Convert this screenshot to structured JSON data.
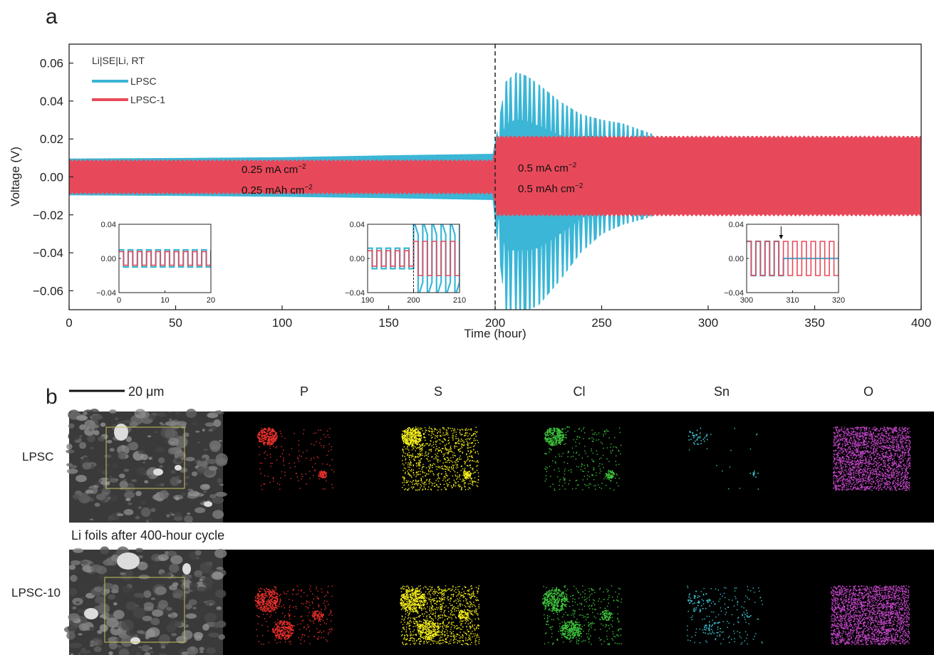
{
  "figure": {
    "panel_a": "a",
    "panel_b": "b"
  },
  "chart_data": {
    "type": "line",
    "xlabel": "Time (hour)",
    "ylabel": "Voltage (V)",
    "xlim": [
      0,
      400
    ],
    "ylim": [
      -0.07,
      0.07
    ],
    "xticks": [
      "0",
      "50",
      "100",
      "150",
      "200",
      "250",
      "300",
      "350",
      "400"
    ],
    "yticks": [
      "0.06",
      "0.04",
      "0.02",
      "0.00",
      "−0.02",
      "−0.04",
      "−0.06"
    ],
    "yticks_values": [
      0.06,
      0.04,
      0.02,
      0.0,
      -0.02,
      -0.04,
      -0.06
    ],
    "legend_title": "Li|SE|Li, RT",
    "legend_position": "top-left",
    "series": [
      {
        "name": "LPSC",
        "color": "#3bb6d6",
        "envelope": {
          "t": [
            0,
            50,
            100,
            150,
            199,
            201,
            205,
            210,
            215,
            220,
            230,
            240,
            250,
            260,
            270,
            275
          ],
          "upper": [
            0.0095,
            0.0098,
            0.0102,
            0.0112,
            0.012,
            0.024,
            0.05,
            0.055,
            0.053,
            0.049,
            0.04,
            0.033,
            0.03,
            0.028,
            0.024,
            0.022
          ],
          "lower": [
            -0.0095,
            -0.0098,
            -0.0103,
            -0.011,
            -0.012,
            -0.033,
            -0.07,
            -0.07,
            -0.07,
            -0.068,
            -0.055,
            -0.04,
            -0.03,
            -0.025,
            -0.022,
            -0.02
          ]
        }
      },
      {
        "name": "LPSC-1",
        "color": "#e8495a",
        "envelope": {
          "t": [
            0,
            199,
            201,
            400
          ],
          "upper": [
            0.0085,
            0.0085,
            0.021,
            0.021
          ],
          "lower": [
            -0.0085,
            -0.0085,
            -0.02,
            -0.02
          ]
        }
      }
    ],
    "vline_x": 200,
    "annotations": [
      {
        "current": "0.25 mA cm",
        "current_exp": "−2",
        "capacity": "0.25 mAh cm",
        "capacity_exp": "−2"
      },
      {
        "current": "0.5 mA cm",
        "current_exp": "−2",
        "capacity": "0.5 mAh cm",
        "capacity_exp": "−2"
      }
    ],
    "insets": [
      {
        "xlim": [
          0,
          20
        ],
        "ylim": [
          -0.04,
          0.04
        ],
        "xticks": [
          "0",
          "10",
          "20"
        ],
        "yticks": [
          "0.04",
          "0.00",
          "−0.04"
        ],
        "period": 2,
        "lpsc_amp": [
          0.01,
          0.01
        ],
        "lpsc1_amp": [
          0.008,
          0.008
        ]
      },
      {
        "xlim": [
          190,
          210
        ],
        "ylim": [
          -0.04,
          0.04
        ],
        "xticks": [
          "190",
          "200",
          "210"
        ],
        "yticks": [
          "0.04",
          "0.00",
          "−0.04"
        ],
        "period": 2,
        "switch_at": 200,
        "lpsc_amp": [
          0.012,
          0.045
        ],
        "lpsc1_amp": [
          0.009,
          0.02
        ]
      },
      {
        "xlim": [
          300,
          320
        ],
        "ylim": [
          -0.04,
          0.04
        ],
        "xticks": [
          "300",
          "310",
          "320"
        ],
        "yticks": [
          "0.04",
          "0.00",
          "−0.04"
        ],
        "period": 2,
        "short_at": 307.5,
        "lpsc_amp": [
          0.02,
          0.0
        ],
        "lpsc1_amp": [
          0.02,
          0.02
        ]
      }
    ]
  },
  "panel_b": {
    "scale_bar": "20 μm",
    "elements": [
      "P",
      "S",
      "Cl",
      "Sn",
      "O"
    ],
    "element_colors": [
      "#e8312c",
      "#f5ee1a",
      "#3ec43c",
      "#3ec5d4",
      "#c447c9"
    ],
    "rows": [
      {
        "label": "LPSC"
      },
      {
        "label": "LPSC-10"
      }
    ],
    "caption": "Li foils after 400-hour cycle"
  }
}
